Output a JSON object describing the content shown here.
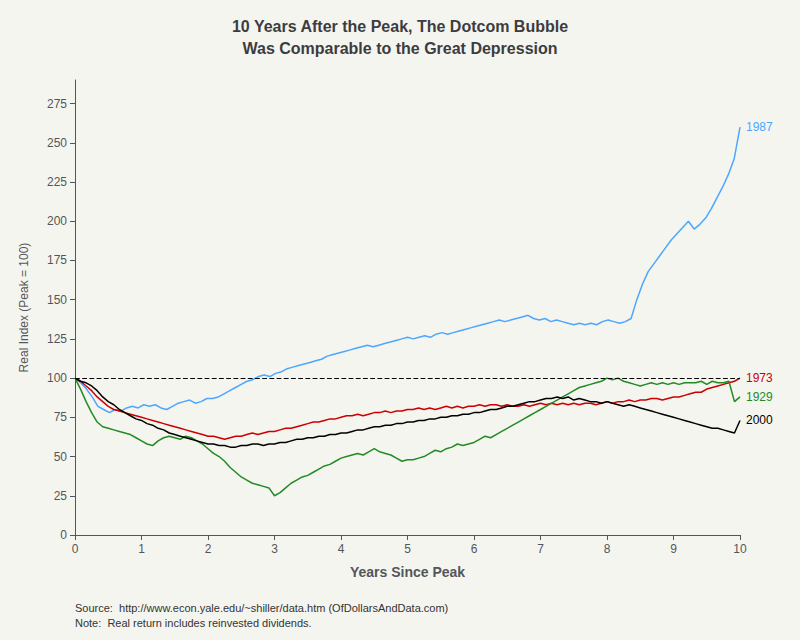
{
  "chart_data": {
    "type": "line",
    "title": "10 Years After the Peak, The Dotcom Bubble\nWas Comparable to the Great Depression",
    "xlabel": "Years Since Peak",
    "ylabel": "Real Index (Peak = 100)",
    "caption": "Source:  http://www.econ.yale.edu/~shiller/data.htm (OfDollarsAndData.com)\nNote:  Real return includes reinvested dividends.",
    "xlim": [
      0,
      10
    ],
    "ylim": [
      0,
      290
    ],
    "xticks": [
      0,
      1,
      2,
      3,
      4,
      5,
      6,
      7,
      8,
      9,
      10
    ],
    "yticks": [
      0,
      25,
      50,
      75,
      100,
      125,
      150,
      175,
      200,
      225,
      250,
      275
    ],
    "grid": false,
    "annotations": [
      {
        "type": "hline",
        "y": 100,
        "line_style": "dashed",
        "color": "#000000"
      }
    ],
    "series": [
      {
        "name": "1987",
        "color": "#4da6ff",
        "label_y": 260,
        "x": [
          0,
          0.0862,
          0.1724,
          0.2586,
          0.3448,
          0.431,
          0.5172,
          0.6034,
          0.6897,
          0.7759,
          0.8621,
          0.9483,
          1.0345,
          1.1207,
          1.2069,
          1.2931,
          1.3793,
          1.4655,
          1.5517,
          1.6379,
          1.7241,
          1.8103,
          1.8966,
          1.9828,
          2.069,
          2.1552,
          2.2414,
          2.3276,
          2.4138,
          2.5,
          2.5862,
          2.6724,
          2.7586,
          2.8448,
          2.931,
          3.0172,
          3.1034,
          3.1897,
          3.2759,
          3.3621,
          3.4483,
          3.5345,
          3.6207,
          3.7069,
          3.7931,
          3.8793,
          3.9655,
          4.0517,
          4.1379,
          4.2241,
          4.3103,
          4.3966,
          4.4828,
          4.569,
          4.6552,
          4.7414,
          4.8276,
          4.9138,
          5,
          5.0862,
          5.1724,
          5.2586,
          5.3448,
          5.431,
          5.5172,
          5.6034,
          5.6897,
          5.7759,
          5.8621,
          5.9483,
          6.0345,
          6.1207,
          6.2069,
          6.2931,
          6.3793,
          6.4655,
          6.5517,
          6.6379,
          6.7241,
          6.8103,
          6.8966,
          6.9828,
          7.069,
          7.1552,
          7.2414,
          7.3276,
          7.4138,
          7.5,
          7.5862,
          7.6724,
          7.7586,
          7.8448,
          7.931,
          8.0172,
          8.1034,
          8.1897,
          8.2759,
          8.3621,
          8.4483,
          8.5345,
          8.6207,
          8.7069,
          8.7931,
          8.8793,
          8.9655,
          9.0517,
          9.1379,
          9.2241,
          9.3103,
          9.3966,
          9.4828,
          9.569,
          9.6552,
          9.7414,
          9.8276,
          9.9138,
          10
        ],
        "values": [
          100,
          97,
          93,
          88,
          82,
          80,
          78,
          80,
          79,
          81,
          82,
          81,
          83,
          82,
          83,
          81,
          80,
          82,
          84,
          85,
          86,
          84,
          85,
          87,
          87,
          88,
          90,
          92,
          94,
          96,
          98,
          99,
          101,
          102,
          101,
          103,
          104,
          106,
          107,
          108,
          109,
          110,
          111,
          112,
          114,
          115,
          116,
          117,
          118,
          119,
          120,
          121,
          120,
          121,
          122,
          123,
          124,
          125,
          126,
          125,
          126,
          127,
          126,
          128,
          129,
          128,
          129,
          130,
          131,
          132,
          133,
          134,
          135,
          136,
          137,
          136,
          137,
          138,
          139,
          140,
          138,
          137,
          138,
          136,
          137,
          136,
          135,
          134,
          135,
          134,
          135,
          134,
          136,
          137,
          136,
          135,
          136,
          138,
          150,
          160,
          168,
          173,
          178,
          183,
          188,
          192,
          196,
          200,
          195,
          198,
          202,
          208,
          215,
          222,
          230,
          240,
          260
        ]
      },
      {
        "name": "1973",
        "color": "#cc0000",
        "label_y": 100,
        "x": [
          0,
          0.0833,
          0.1667,
          0.25,
          0.3333,
          0.4167,
          0.5,
          0.5833,
          0.6667,
          0.75,
          0.8333,
          0.9167,
          1,
          1.0833,
          1.1667,
          1.25,
          1.3333,
          1.4167,
          1.5,
          1.5833,
          1.6667,
          1.75,
          1.8333,
          1.9167,
          2,
          2.0833,
          2.1667,
          2.25,
          2.3333,
          2.4167,
          2.5,
          2.5833,
          2.6667,
          2.75,
          2.8333,
          2.9167,
          3,
          3.0833,
          3.1667,
          3.25,
          3.3333,
          3.4167,
          3.5,
          3.5833,
          3.6667,
          3.75,
          3.8333,
          3.9167,
          4,
          4.0833,
          4.1667,
          4.25,
          4.3333,
          4.4167,
          4.5,
          4.5833,
          4.6667,
          4.75,
          4.8333,
          4.9167,
          5,
          5.0833,
          5.1667,
          5.25,
          5.3333,
          5.4167,
          5.5,
          5.5833,
          5.6667,
          5.75,
          5.8333,
          5.9167,
          6,
          6.0833,
          6.1667,
          6.25,
          6.3333,
          6.4167,
          6.5,
          6.5833,
          6.6667,
          6.75,
          6.8333,
          6.9167,
          7,
          7.0833,
          7.1667,
          7.25,
          7.3333,
          7.4167,
          7.5,
          7.5833,
          7.6667,
          7.75,
          7.8333,
          7.9167,
          8,
          8.0833,
          8.1667,
          8.25,
          8.3333,
          8.4167,
          8.5,
          8.5833,
          8.6667,
          8.75,
          8.8333,
          8.9167,
          9,
          9.0833,
          9.1667,
          9.25,
          9.3333,
          9.4167,
          9.5,
          9.5833,
          9.6667,
          9.75,
          9.8333,
          9.9167,
          10
        ],
        "values": [
          100,
          98,
          95,
          92,
          88,
          85,
          82,
          80,
          79,
          78,
          77,
          76,
          75,
          74,
          73,
          72,
          71,
          70,
          69,
          68,
          67,
          66,
          65,
          64,
          63,
          63,
          62,
          61,
          62,
          63,
          63,
          64,
          65,
          64,
          65,
          66,
          66,
          67,
          68,
          68,
          69,
          70,
          71,
          72,
          72,
          73,
          74,
          74,
          75,
          76,
          76,
          77,
          76,
          77,
          78,
          78,
          79,
          78,
          79,
          79,
          80,
          80,
          81,
          80,
          81,
          80,
          81,
          82,
          81,
          82,
          81,
          82,
          82,
          83,
          82,
          83,
          83,
          82,
          83,
          82,
          82,
          83,
          82,
          83,
          84,
          83,
          84,
          83,
          84,
          83,
          84,
          83,
          84,
          84,
          83,
          84,
          85,
          84,
          85,
          85,
          86,
          85,
          86,
          86,
          87,
          87,
          86,
          87,
          88,
          88,
          89,
          90,
          91,
          91,
          93,
          94,
          95,
          96,
          97,
          98,
          100
        ]
      },
      {
        "name": "1929",
        "color": "#228B22",
        "label_y": 88,
        "x": [
          0,
          0.0833,
          0.1667,
          0.25,
          0.3333,
          0.4167,
          0.5,
          0.5833,
          0.6667,
          0.75,
          0.8333,
          0.9167,
          1,
          1.0833,
          1.1667,
          1.25,
          1.3333,
          1.4167,
          1.5,
          1.5833,
          1.6667,
          1.75,
          1.8333,
          1.9167,
          2,
          2.0833,
          2.1667,
          2.25,
          2.3333,
          2.4167,
          2.5,
          2.5833,
          2.6667,
          2.75,
          2.8333,
          2.9167,
          3,
          3.0833,
          3.1667,
          3.25,
          3.3333,
          3.4167,
          3.5,
          3.5833,
          3.6667,
          3.75,
          3.8333,
          3.9167,
          4,
          4.0833,
          4.1667,
          4.25,
          4.3333,
          4.4167,
          4.5,
          4.5833,
          4.6667,
          4.75,
          4.8333,
          4.9167,
          5,
          5.0833,
          5.1667,
          5.25,
          5.3333,
          5.4167,
          5.5,
          5.5833,
          5.6667,
          5.75,
          5.8333,
          5.9167,
          6,
          6.0833,
          6.1667,
          6.25,
          6.3333,
          6.4167,
          6.5,
          6.5833,
          6.6667,
          6.75,
          6.8333,
          6.9167,
          7,
          7.0833,
          7.1667,
          7.25,
          7.3333,
          7.4167,
          7.5,
          7.5833,
          7.6667,
          7.75,
          7.8333,
          7.9167,
          8,
          8.0833,
          8.1667,
          8.25,
          8.3333,
          8.4167,
          8.5,
          8.5833,
          8.6667,
          8.75,
          8.8333,
          8.9167,
          9,
          9.0833,
          9.1667,
          9.25,
          9.3333,
          9.4167,
          9.5,
          9.5833,
          9.6667,
          9.75,
          9.8333,
          9.9167,
          10
        ],
        "values": [
          100,
          93,
          85,
          78,
          72,
          69,
          68,
          67,
          66,
          65,
          64,
          62,
          60,
          58,
          57,
          60,
          62,
          63,
          62,
          61,
          63,
          62,
          60,
          58,
          55,
          52,
          50,
          47,
          43,
          40,
          37,
          35,
          33,
          32,
          31,
          30,
          25,
          27,
          30,
          33,
          35,
          37,
          38,
          40,
          42,
          44,
          45,
          47,
          49,
          50,
          51,
          52,
          51,
          53,
          55,
          53,
          52,
          51,
          49,
          47,
          48,
          48,
          49,
          50,
          52,
          54,
          53,
          55,
          56,
          58,
          57,
          58,
          59,
          61,
          63,
          62,
          64,
          66,
          68,
          70,
          72,
          74,
          76,
          78,
          80,
          82,
          84,
          86,
          88,
          90,
          92,
          94,
          95,
          96,
          97,
          98,
          100,
          99,
          100,
          98,
          97,
          96,
          95,
          96,
          97,
          96,
          97,
          96,
          97,
          96,
          97,
          97,
          97,
          98,
          96,
          98,
          97,
          97,
          98,
          85,
          88
        ]
      },
      {
        "name": "2000",
        "color": "#000000",
        "label_y": 73,
        "x": [
          0,
          0.0833,
          0.1667,
          0.25,
          0.3333,
          0.4167,
          0.5,
          0.5833,
          0.6667,
          0.75,
          0.8333,
          0.9167,
          1,
          1.0833,
          1.1667,
          1.25,
          1.3333,
          1.4167,
          1.5,
          1.5833,
          1.6667,
          1.75,
          1.8333,
          1.9167,
          2,
          2.0833,
          2.1667,
          2.25,
          2.3333,
          2.4167,
          2.5,
          2.5833,
          2.6667,
          2.75,
          2.8333,
          2.9167,
          3,
          3.0833,
          3.1667,
          3.25,
          3.3333,
          3.4167,
          3.5,
          3.5833,
          3.6667,
          3.75,
          3.8333,
          3.9167,
          4,
          4.0833,
          4.1667,
          4.25,
          4.3333,
          4.4167,
          4.5,
          4.5833,
          4.6667,
          4.75,
          4.8333,
          4.9167,
          5,
          5.0833,
          5.1667,
          5.25,
          5.3333,
          5.4167,
          5.5,
          5.5833,
          5.6667,
          5.75,
          5.8333,
          5.9167,
          6,
          6.0833,
          6.1667,
          6.25,
          6.3333,
          6.4167,
          6.5,
          6.5833,
          6.6667,
          6.75,
          6.8333,
          6.9167,
          7,
          7.0833,
          7.1667,
          7.25,
          7.3333,
          7.4167,
          7.5,
          7.5833,
          7.6667,
          7.75,
          7.8333,
          7.9167,
          8,
          8.0833,
          8.1667,
          8.25,
          8.3333,
          8.4167,
          8.5,
          8.5833,
          8.6667,
          8.75,
          8.8333,
          8.9167,
          9,
          9.0833,
          9.1667,
          9.25,
          9.3333,
          9.4167,
          9.5,
          9.5833,
          9.6667,
          9.75,
          9.8333,
          9.9167,
          10
        ],
        "values": [
          100,
          98,
          97,
          95,
          92,
          88,
          85,
          83,
          80,
          78,
          76,
          74,
          73,
          71,
          70,
          68,
          67,
          65,
          64,
          63,
          62,
          61,
          60,
          59,
          58,
          58,
          57,
          57,
          56,
          56,
          57,
          57,
          58,
          58,
          57,
          58,
          58,
          59,
          59,
          60,
          61,
          61,
          62,
          62,
          63,
          63,
          64,
          64,
          65,
          65,
          66,
          67,
          67,
          68,
          69,
          69,
          70,
          70,
          71,
          71,
          72,
          72,
          73,
          73,
          74,
          74,
          75,
          75,
          76,
          76,
          77,
          77,
          78,
          78,
          79,
          80,
          80,
          81,
          82,
          82,
          83,
          84,
          85,
          85,
          86,
          87,
          87,
          88,
          87,
          88,
          86,
          87,
          86,
          85,
          85,
          84,
          85,
          84,
          83,
          82,
          83,
          82,
          81,
          80,
          79,
          78,
          77,
          76,
          75,
          74,
          73,
          72,
          71,
          70,
          69,
          68,
          68,
          67,
          66,
          65,
          73
        ]
      }
    ]
  }
}
